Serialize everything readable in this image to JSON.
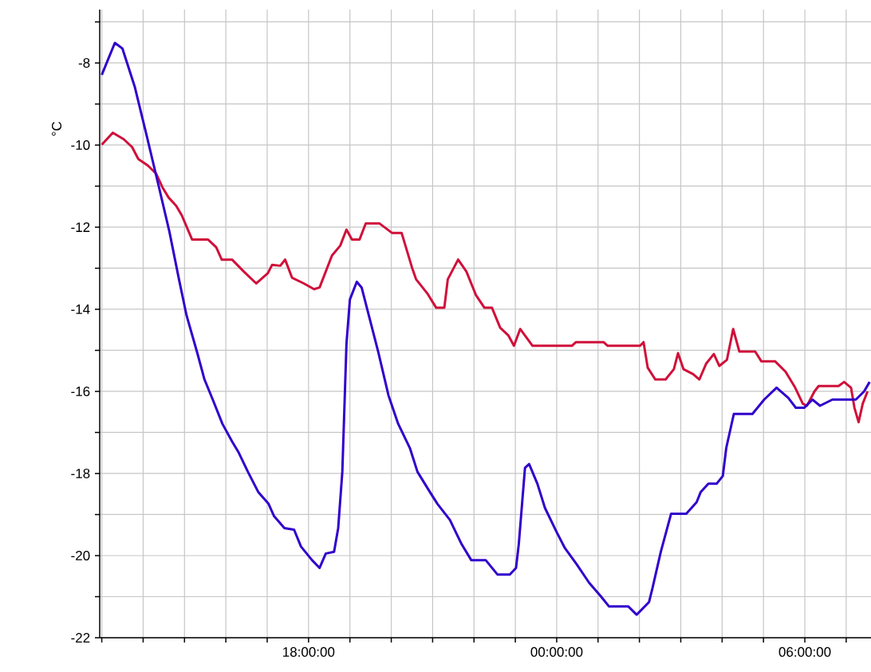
{
  "chart_data": {
    "type": "line",
    "ylabel": "°C",
    "xlim": [
      "2000-01-01T12:57",
      "2000-01-02T07:36"
    ],
    "ylim": [
      -22,
      -6.7
    ],
    "xticks": [
      {
        "value": "2000-01-01T13:00",
        "label": null
      },
      {
        "value": "2000-01-01T14:00",
        "label": null
      },
      {
        "value": "2000-01-01T15:00",
        "label": null
      },
      {
        "value": "2000-01-01T16:00",
        "label": null
      },
      {
        "value": "2000-01-01T17:00",
        "label": null
      },
      {
        "value": "2000-01-01T18:00",
        "label": "18:00:00"
      },
      {
        "value": "2000-01-01T19:00",
        "label": null
      },
      {
        "value": "2000-01-01T20:00",
        "label": null
      },
      {
        "value": "2000-01-01T21:00",
        "label": null
      },
      {
        "value": "2000-01-01T22:00",
        "label": null
      },
      {
        "value": "2000-01-01T23:00",
        "label": null
      },
      {
        "value": "2000-01-02T00:00",
        "label": "00:00:00"
      },
      {
        "value": "2000-01-02T01:00",
        "label": null
      },
      {
        "value": "2000-01-02T02:00",
        "label": null
      },
      {
        "value": "2000-01-02T03:00",
        "label": null
      },
      {
        "value": "2000-01-02T04:00",
        "label": null
      },
      {
        "value": "2000-01-02T05:00",
        "label": null
      },
      {
        "value": "2000-01-02T06:00",
        "label": "06:00:00"
      },
      {
        "value": "2000-01-02T07:00",
        "label": null
      }
    ],
    "yticks": [
      -22,
      {
        "value": -21,
        "label": null
      },
      -20,
      {
        "value": -19,
        "label": null
      },
      -18,
      {
        "value": -17,
        "label": null
      },
      -16,
      {
        "value": -15,
        "label": null
      },
      -14,
      {
        "value": -13,
        "label": null
      },
      -12,
      {
        "value": -11,
        "label": null
      },
      -10,
      {
        "value": -9,
        "label": null
      },
      -8,
      {
        "value": -7,
        "label": null
      }
    ],
    "grid": true,
    "series": [
      {
        "color": "#d0103a",
        "x": [
          "2000-01-01T13:00",
          "2000-01-01T13:16",
          "2000-01-01T13:32",
          "2000-01-01T13:44",
          "2000-01-01T13:53",
          "2000-01-01T14:07",
          "2000-01-01T14:19",
          "2000-01-01T14:28",
          "2000-01-01T14:37",
          "2000-01-01T14:48",
          "2000-01-01T14:56",
          "2000-01-01T15:11",
          "2000-01-01T15:34",
          "2000-01-01T15:46",
          "2000-01-01T15:54",
          "2000-01-01T16:09",
          "2000-01-01T16:26",
          "2000-01-01T16:44",
          "2000-01-01T17:01",
          "2000-01-01T17:07",
          "2000-01-01T17:19",
          "2000-01-01T17:26",
          "2000-01-01T17:36",
          "2000-01-01T17:53",
          "2000-01-01T18:08",
          "2000-01-01T18:16",
          "2000-01-01T18:34",
          "2000-01-01T18:46",
          "2000-01-01T18:55",
          "2000-01-01T19:03",
          "2000-01-01T19:14",
          "2000-01-01T19:23",
          "2000-01-01T19:43",
          "2000-01-01T20:01",
          "2000-01-01T20:15",
          "2000-01-01T20:30",
          "2000-01-01T20:36",
          "2000-01-01T20:53",
          "2000-01-01T21:05",
          "2000-01-01T21:17",
          "2000-01-01T21:22",
          "2000-01-01T21:37",
          "2000-01-01T21:49",
          "2000-01-01T22:03",
          "2000-01-01T22:15",
          "2000-01-01T22:26",
          "2000-01-01T22:38",
          "2000-01-01T22:50",
          "2000-01-01T22:58",
          "2000-01-01T23:07",
          "2000-01-01T23:25",
          "2000-01-02T00:22",
          "2000-01-02T00:28",
          "2000-01-02T01:08",
          "2000-01-02T01:14",
          "2000-01-02T02:01",
          "2000-01-02T02:06",
          "2000-01-02T02:12",
          "2000-01-02T02:23",
          "2000-01-02T02:38",
          "2000-01-02T02:50",
          "2000-01-02T02:56",
          "2000-01-02T03:04",
          "2000-01-02T03:18",
          "2000-01-02T03:27",
          "2000-01-02T03:37",
          "2000-01-02T03:48",
          "2000-01-02T03:56",
          "2000-01-02T04:07",
          "2000-01-02T04:16",
          "2000-01-02T04:25",
          "2000-01-02T04:48",
          "2000-01-02T04:57",
          "2000-01-02T05:17",
          "2000-01-02T05:32",
          "2000-01-02T05:46",
          "2000-01-02T05:57",
          "2000-01-02T06:03",
          "2000-01-02T06:14",
          "2000-01-02T06:20",
          "2000-01-02T06:49",
          "2000-01-02T06:57",
          "2000-01-02T07:07",
          "2000-01-02T07:12",
          "2000-01-02T07:18",
          "2000-01-02T07:24",
          "2000-01-02T07:31"
        ],
        "values": [
          -9.99,
          -9.7,
          -9.86,
          -10.05,
          -10.34,
          -10.5,
          -10.7,
          -11.03,
          -11.28,
          -11.48,
          -11.71,
          -12.3,
          -12.3,
          -12.49,
          -12.79,
          -12.79,
          -13.08,
          -13.37,
          -13.12,
          -12.92,
          -12.94,
          -12.79,
          -13.23,
          -13.37,
          -13.51,
          -13.47,
          -12.69,
          -12.45,
          -12.06,
          -12.3,
          -12.3,
          -11.91,
          -11.91,
          -12.14,
          -12.14,
          -12.98,
          -13.27,
          -13.63,
          -13.96,
          -13.96,
          -13.27,
          -12.79,
          -13.08,
          -13.66,
          -13.96,
          -13.96,
          -14.45,
          -14.64,
          -14.89,
          -14.48,
          -14.89,
          -14.89,
          -14.8,
          -14.8,
          -14.89,
          -14.89,
          -14.8,
          -15.42,
          -15.71,
          -15.71,
          -15.46,
          -15.07,
          -15.46,
          -15.58,
          -15.71,
          -15.32,
          -15.09,
          -15.38,
          -15.23,
          -14.48,
          -15.03,
          -15.03,
          -15.27,
          -15.27,
          -15.52,
          -15.91,
          -16.3,
          -16.35,
          -16.0,
          -15.87,
          -15.87,
          -15.77,
          -15.91,
          -16.4,
          -16.75,
          -16.3,
          -16.0
        ]
      },
      {
        "color": "#3000cc",
        "x": [
          "2000-01-01T13:00",
          "2000-01-01T13:19",
          "2000-01-01T13:30",
          "2000-01-01T13:48",
          "2000-01-01T14:05",
          "2000-01-01T14:23",
          "2000-01-01T14:38",
          "2000-01-01T14:52",
          "2000-01-01T15:03",
          "2000-01-01T15:18",
          "2000-01-01T15:29",
          "2000-01-01T15:41",
          "2000-01-01T15:55",
          "2000-01-01T16:09",
          "2000-01-01T16:18",
          "2000-01-01T16:32",
          "2000-01-01T16:47",
          "2000-01-01T17:02",
          "2000-01-01T17:10",
          "2000-01-01T17:25",
          "2000-01-01T17:39",
          "2000-01-01T17:49",
          "2000-01-01T18:05",
          "2000-01-01T18:16",
          "2000-01-01T18:25",
          "2000-01-01T18:37",
          "2000-01-01T18:43",
          "2000-01-01T18:49",
          "2000-01-01T18:55",
          "2000-01-01T19:00",
          "2000-01-01T19:10",
          "2000-01-01T19:17",
          "2000-01-01T19:29",
          "2000-01-01T19:41",
          "2000-01-01T19:56",
          "2000-01-01T20:10",
          "2000-01-01T20:27",
          "2000-01-01T20:38",
          "2000-01-01T20:56",
          "2000-01-01T21:07",
          "2000-01-01T21:25",
          "2000-01-01T21:42",
          "2000-01-01T21:56",
          "2000-01-01T22:17",
          "2000-01-01T22:34",
          "2000-01-01T22:52",
          "2000-01-01T23:01",
          "2000-01-01T23:05",
          "2000-01-01T23:14",
          "2000-01-01T23:20",
          "2000-01-01T23:32",
          "2000-01-01T23:43",
          "2000-01-02T00:00",
          "2000-01-02T00:12",
          "2000-01-02T00:29",
          "2000-01-02T00:47",
          "2000-01-02T01:04",
          "2000-01-02T01:16",
          "2000-01-02T01:44",
          "2000-01-02T01:56",
          "2000-01-02T02:14",
          "2000-01-02T02:19",
          "2000-01-02T02:31",
          "2000-01-02T02:46",
          "2000-01-02T03:08",
          "2000-01-02T03:23",
          "2000-01-02T03:29",
          "2000-01-02T03:40",
          "2000-01-02T03:52",
          "2000-01-02T04:01",
          "2000-01-02T04:06",
          "2000-01-02T04:17",
          "2000-01-02T04:44",
          "2000-01-02T05:01",
          "2000-01-02T05:19",
          "2000-01-02T05:36",
          "2000-01-02T05:47",
          "2000-01-02T05:59",
          "2000-01-02T06:11",
          "2000-01-02T06:22",
          "2000-01-02T06:40",
          "2000-01-02T07:14",
          "2000-01-02T07:26",
          "2000-01-02T07:34"
        ],
        "values": [
          -8.29,
          -7.51,
          -7.65,
          -8.59,
          -9.76,
          -11.03,
          -12.1,
          -13.27,
          -14.15,
          -15.03,
          -15.71,
          -16.2,
          -16.79,
          -17.22,
          -17.47,
          -17.96,
          -18.45,
          -18.74,
          -19.04,
          -19.33,
          -19.37,
          -19.78,
          -20.11,
          -20.3,
          -19.95,
          -19.91,
          -19.33,
          -17.96,
          -14.84,
          -13.76,
          -13.33,
          -13.47,
          -14.25,
          -15.03,
          -16.1,
          -16.79,
          -17.38,
          -17.96,
          -18.45,
          -18.74,
          -19.13,
          -19.72,
          -20.11,
          -20.11,
          -20.46,
          -20.46,
          -20.3,
          -19.72,
          -17.86,
          -17.77,
          -18.25,
          -18.84,
          -19.43,
          -19.82,
          -20.21,
          -20.66,
          -20.99,
          -21.24,
          -21.24,
          -21.44,
          -21.13,
          -20.79,
          -19.91,
          -18.98,
          -18.98,
          -18.7,
          -18.45,
          -18.25,
          -18.25,
          -18.06,
          -17.38,
          -16.55,
          -16.55,
          -16.2,
          -15.91,
          -16.16,
          -16.4,
          -16.4,
          -16.2,
          -16.35,
          -16.2,
          -16.2,
          -16.0,
          -15.77
        ]
      }
    ]
  }
}
